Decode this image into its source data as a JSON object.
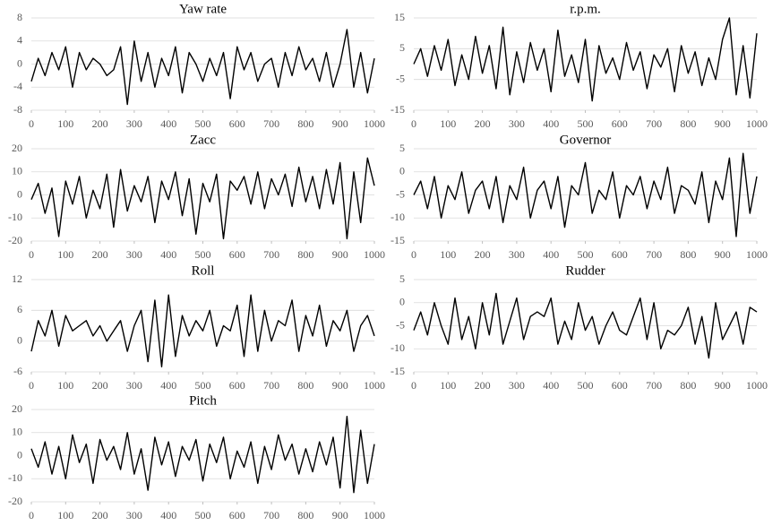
{
  "chart_data": [
    {
      "type": "line",
      "title": "Yaw rate",
      "color": "#000000",
      "grid": true,
      "x": [
        0,
        20,
        40,
        60,
        80,
        100,
        120,
        140,
        160,
        180,
        200,
        220,
        240,
        260,
        280,
        300,
        320,
        340,
        360,
        380,
        400,
        420,
        440,
        460,
        480,
        500,
        520,
        540,
        560,
        580,
        600,
        620,
        640,
        660,
        680,
        700,
        720,
        740,
        760,
        780,
        800,
        820,
        840,
        860,
        880,
        900,
        920,
        940,
        960,
        980,
        1000
      ],
      "values": [
        -3,
        1,
        -2,
        2,
        -1,
        3,
        -4,
        2,
        -1,
        1,
        0,
        -2,
        -1,
        3,
        -7,
        4,
        -3,
        2,
        -4,
        1,
        -2,
        3,
        -5,
        2,
        0,
        -3,
        1,
        -2,
        2,
        -6,
        3,
        -1,
        2,
        -3,
        0,
        1,
        -4,
        2,
        -2,
        3,
        -1,
        1,
        -3,
        2,
        -4,
        0,
        6,
        -4,
        2,
        -5,
        1
      ],
      "xlim": [
        0,
        1000
      ],
      "xticks": [
        0,
        100,
        200,
        300,
        400,
        500,
        600,
        700,
        800,
        900,
        1000
      ],
      "ylim": [
        -8,
        8
      ],
      "yticks": [
        -8,
        -4,
        0,
        4,
        8
      ]
    },
    {
      "type": "line",
      "title": "r.p.m.",
      "color": "#000000",
      "grid": true,
      "x": [
        0,
        20,
        40,
        60,
        80,
        100,
        120,
        140,
        160,
        180,
        200,
        220,
        240,
        260,
        280,
        300,
        320,
        340,
        360,
        380,
        400,
        420,
        440,
        460,
        480,
        500,
        520,
        540,
        560,
        580,
        600,
        620,
        640,
        660,
        680,
        700,
        720,
        740,
        760,
        780,
        800,
        820,
        840,
        860,
        880,
        900,
        920,
        940,
        960,
        980,
        1000
      ],
      "values": [
        0,
        5,
        -4,
        6,
        -2,
        8,
        -7,
        3,
        -5,
        9,
        -3,
        6,
        -8,
        12,
        -10,
        4,
        -6,
        7,
        -2,
        5,
        -9,
        11,
        -4,
        3,
        -6,
        8,
        -12,
        6,
        -3,
        2,
        -5,
        7,
        -2,
        4,
        -8,
        3,
        -1,
        5,
        -9,
        6,
        -3,
        4,
        -7,
        2,
        -5,
        8,
        15,
        -10,
        6,
        -11,
        10
      ],
      "xlim": [
        0,
        1000
      ],
      "xticks": [
        0,
        100,
        200,
        300,
        400,
        500,
        600,
        700,
        800,
        900,
        1000
      ],
      "ylim": [
        -15,
        15
      ],
      "yticks": [
        -15,
        -5,
        5,
        15
      ]
    },
    {
      "type": "line",
      "title": "Zacc",
      "color": "#000000",
      "grid": true,
      "x": [
        0,
        20,
        40,
        60,
        80,
        100,
        120,
        140,
        160,
        180,
        200,
        220,
        240,
        260,
        280,
        300,
        320,
        340,
        360,
        380,
        400,
        420,
        440,
        460,
        480,
        500,
        520,
        540,
        560,
        580,
        600,
        620,
        640,
        660,
        680,
        700,
        720,
        740,
        760,
        780,
        800,
        820,
        840,
        860,
        880,
        900,
        920,
        940,
        960,
        980,
        1000
      ],
      "values": [
        -2,
        5,
        -8,
        3,
        -18,
        6,
        -4,
        8,
        -10,
        2,
        -6,
        9,
        -14,
        11,
        -7,
        4,
        -3,
        8,
        -12,
        6,
        -2,
        10,
        -9,
        7,
        -17,
        5,
        -3,
        9,
        -19,
        6,
        2,
        8,
        -4,
        10,
        -6,
        7,
        0,
        9,
        -5,
        12,
        -3,
        8,
        -6,
        11,
        -4,
        14,
        -19,
        10,
        -12,
        16,
        4
      ],
      "xlim": [
        0,
        1000
      ],
      "xticks": [
        0,
        100,
        200,
        300,
        400,
        500,
        600,
        700,
        800,
        900,
        1000
      ],
      "ylim": [
        -20,
        20
      ],
      "yticks": [
        -20,
        -10,
        0,
        10,
        20
      ]
    },
    {
      "type": "line",
      "title": "Governor",
      "color": "#000000",
      "grid": true,
      "x": [
        0,
        20,
        40,
        60,
        80,
        100,
        120,
        140,
        160,
        180,
        200,
        220,
        240,
        260,
        280,
        300,
        320,
        340,
        360,
        380,
        400,
        420,
        440,
        460,
        480,
        500,
        520,
        540,
        560,
        580,
        600,
        620,
        640,
        660,
        680,
        700,
        720,
        740,
        760,
        780,
        800,
        820,
        840,
        860,
        880,
        900,
        920,
        940,
        960,
        980,
        1000
      ],
      "values": [
        -5,
        -2,
        -8,
        -1,
        -10,
        -3,
        -6,
        0,
        -9,
        -4,
        -2,
        -8,
        -1,
        -11,
        -3,
        -6,
        1,
        -10,
        -4,
        -2,
        -8,
        -1,
        -12,
        -3,
        -5,
        2,
        -9,
        -4,
        -6,
        0,
        -10,
        -3,
        -5,
        -1,
        -8,
        -2,
        -6,
        1,
        -9,
        -3,
        -4,
        -7,
        0,
        -11,
        -2,
        -6,
        3,
        -14,
        4,
        -9,
        -1
      ],
      "xlim": [
        0,
        1000
      ],
      "xticks": [
        0,
        100,
        200,
        300,
        400,
        500,
        600,
        700,
        800,
        900,
        1000
      ],
      "ylim": [
        -15,
        5
      ],
      "yticks": [
        -15,
        -10,
        -5,
        0,
        5
      ]
    },
    {
      "type": "line",
      "title": "Roll",
      "color": "#000000",
      "grid": true,
      "x": [
        0,
        20,
        40,
        60,
        80,
        100,
        120,
        140,
        160,
        180,
        200,
        220,
        240,
        260,
        280,
        300,
        320,
        340,
        360,
        380,
        400,
        420,
        440,
        460,
        480,
        500,
        520,
        540,
        560,
        580,
        600,
        620,
        640,
        660,
        680,
        700,
        720,
        740,
        760,
        780,
        800,
        820,
        840,
        860,
        880,
        900,
        920,
        940,
        960,
        980,
        1000
      ],
      "values": [
        -2,
        4,
        1,
        6,
        -1,
        5,
        2,
        3,
        4,
        1,
        3,
        0,
        2,
        4,
        -2,
        3,
        6,
        -4,
        8,
        -5,
        9,
        -3,
        5,
        1,
        4,
        2,
        6,
        -1,
        3,
        2,
        7,
        -3,
        9,
        -2,
        6,
        0,
        4,
        3,
        8,
        -2,
        5,
        1,
        7,
        -1,
        4,
        2,
        6,
        -2,
        3,
        5,
        1
      ],
      "xlim": [
        0,
        1000
      ],
      "xticks": [
        0,
        100,
        200,
        300,
        400,
        500,
        600,
        700,
        800,
        900,
        1000
      ],
      "ylim": [
        -6,
        12
      ],
      "yticks": [
        -6,
        0,
        6,
        12
      ]
    },
    {
      "type": "line",
      "title": "Rudder",
      "color": "#000000",
      "grid": true,
      "x": [
        0,
        20,
        40,
        60,
        80,
        100,
        120,
        140,
        160,
        180,
        200,
        220,
        240,
        260,
        280,
        300,
        320,
        340,
        360,
        380,
        400,
        420,
        440,
        460,
        480,
        500,
        520,
        540,
        560,
        580,
        600,
        620,
        640,
        660,
        680,
        700,
        720,
        740,
        760,
        780,
        800,
        820,
        840,
        860,
        880,
        900,
        920,
        940,
        960,
        980,
        1000
      ],
      "values": [
        -6,
        -2,
        -7,
        0,
        -5,
        -9,
        1,
        -8,
        -3,
        -10,
        0,
        -7,
        2,
        -9,
        -4,
        1,
        -8,
        -3,
        -2,
        -3,
        1,
        -9,
        -4,
        -8,
        0,
        -6,
        -3,
        -9,
        -5,
        -2,
        -6,
        -7,
        -3,
        1,
        -8,
        0,
        -10,
        -6,
        -7,
        -5,
        -1,
        -9,
        -3,
        -12,
        0,
        -8,
        -5,
        -2,
        -9,
        -1,
        -2
      ],
      "xlim": [
        0,
        1000
      ],
      "xticks": [
        0,
        100,
        200,
        300,
        400,
        500,
        600,
        700,
        800,
        900,
        1000
      ],
      "ylim": [
        -15,
        5
      ],
      "yticks": [
        -15,
        -10,
        -5,
        0,
        5
      ]
    },
    {
      "type": "line",
      "title": "Pitch",
      "color": "#000000",
      "grid": true,
      "x": [
        0,
        20,
        40,
        60,
        80,
        100,
        120,
        140,
        160,
        180,
        200,
        220,
        240,
        260,
        280,
        300,
        320,
        340,
        360,
        380,
        400,
        420,
        440,
        460,
        480,
        500,
        520,
        540,
        560,
        580,
        600,
        620,
        640,
        660,
        680,
        700,
        720,
        740,
        760,
        780,
        800,
        820,
        840,
        860,
        880,
        900,
        920,
        940,
        960,
        980,
        1000
      ],
      "values": [
        3,
        -5,
        6,
        -8,
        4,
        -10,
        9,
        -3,
        5,
        -12,
        7,
        -2,
        4,
        -6,
        10,
        -8,
        3,
        -15,
        8,
        -4,
        6,
        -9,
        4,
        -2,
        7,
        -11,
        5,
        -3,
        8,
        -10,
        2,
        -5,
        6,
        -12,
        4,
        -6,
        9,
        -2,
        5,
        -8,
        3,
        -7,
        6,
        -4,
        8,
        -14,
        17,
        -16,
        11,
        -12,
        5
      ],
      "xlim": [
        0,
        1000
      ],
      "xticks": [
        0,
        100,
        200,
        300,
        400,
        500,
        600,
        700,
        800,
        900,
        1000
      ],
      "ylim": [
        -20,
        20
      ],
      "yticks": [
        -20,
        -10,
        0,
        10,
        20
      ]
    }
  ]
}
